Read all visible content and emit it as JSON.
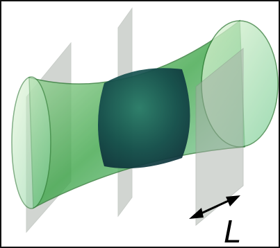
{
  "label": "L"
}
